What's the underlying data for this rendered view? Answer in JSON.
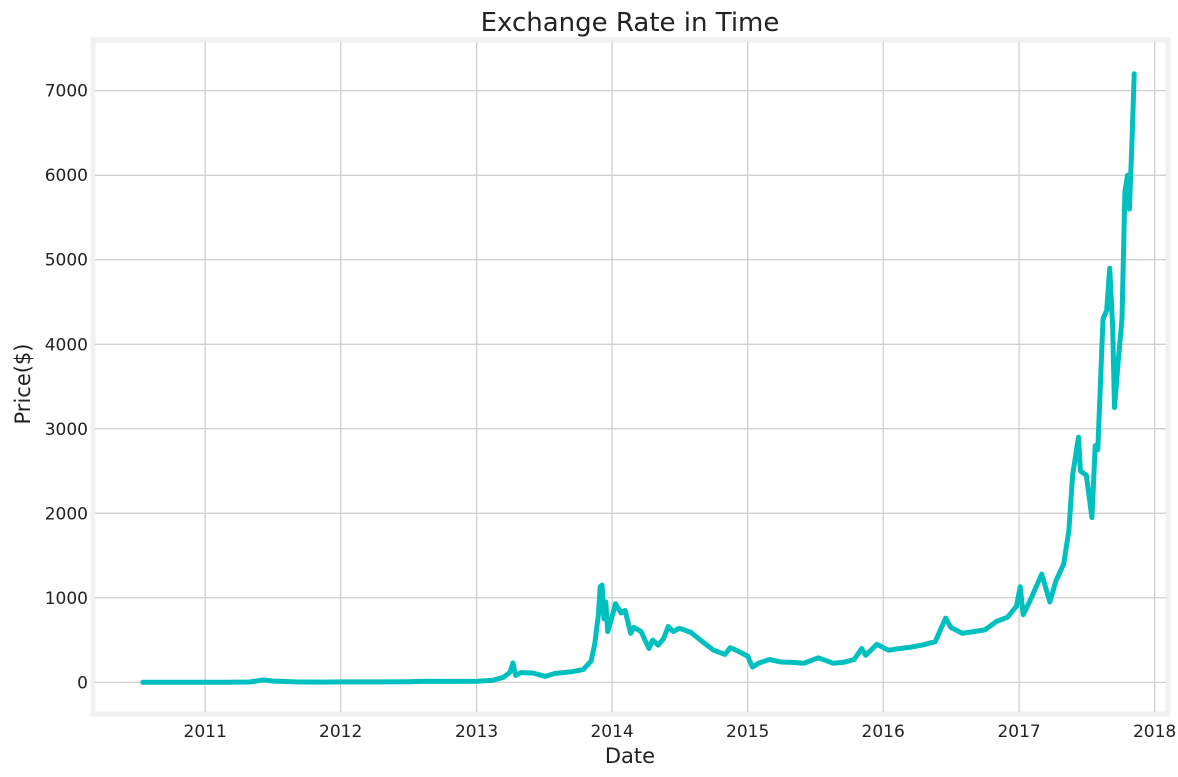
{
  "chart_data": {
    "type": "line",
    "title": "Exchange Rate in Time",
    "xlabel": "Date",
    "ylabel": "Price($)",
    "grid": true,
    "xlim": [
      "2010-03-05",
      "2018-02-06"
    ],
    "ylim": [
      -375,
      7600
    ],
    "x_ticks": [
      "2011",
      "2012",
      "2013",
      "2014",
      "2015",
      "2016",
      "2017",
      "2018"
    ],
    "y_ticks": [
      0,
      1000,
      2000,
      3000,
      4000,
      5000,
      6000,
      7000
    ],
    "series": [
      {
        "color": "#00bfbf",
        "points": [
          [
            "2010-07-17",
            0.05
          ],
          [
            "2010-10-01",
            0.1
          ],
          [
            "2011-01-01",
            0.3
          ],
          [
            "2011-03-01",
            0.9
          ],
          [
            "2011-05-01",
            3.5
          ],
          [
            "2011-06-08",
            29
          ],
          [
            "2011-07-01",
            15
          ],
          [
            "2011-09-01",
            5
          ],
          [
            "2011-11-15",
            2.5
          ],
          [
            "2012-01-01",
            5
          ],
          [
            "2012-04-01",
            5
          ],
          [
            "2012-07-01",
            7
          ],
          [
            "2012-08-15",
            12
          ],
          [
            "2012-10-01",
            11
          ],
          [
            "2013-01-01",
            13
          ],
          [
            "2013-02-15",
            25
          ],
          [
            "2013-03-15",
            60
          ],
          [
            "2013-04-01",
            120
          ],
          [
            "2013-04-09",
            230
          ],
          [
            "2013-04-16",
            80
          ],
          [
            "2013-05-01",
            115
          ],
          [
            "2013-06-01",
            110
          ],
          [
            "2013-07-05",
            70
          ],
          [
            "2013-08-01",
            105
          ],
          [
            "2013-09-15",
            125
          ],
          [
            "2013-10-15",
            150
          ],
          [
            "2013-11-05",
            250
          ],
          [
            "2013-11-15",
            450
          ],
          [
            "2013-11-25",
            800
          ],
          [
            "2013-11-30",
            1130
          ],
          [
            "2013-12-05",
            1150
          ],
          [
            "2013-12-10",
            750
          ],
          [
            "2013-12-15",
            950
          ],
          [
            "2013-12-20",
            600
          ],
          [
            "2013-12-30",
            750
          ],
          [
            "2014-01-10",
            930
          ],
          [
            "2014-01-25",
            820
          ],
          [
            "2014-02-05",
            850
          ],
          [
            "2014-02-20",
            580
          ],
          [
            "2014-03-01",
            650
          ],
          [
            "2014-03-20",
            600
          ],
          [
            "2014-04-10",
            400
          ],
          [
            "2014-04-20",
            500
          ],
          [
            "2014-05-05",
            440
          ],
          [
            "2014-05-20",
            520
          ],
          [
            "2014-06-01",
            660
          ],
          [
            "2014-06-15",
            600
          ],
          [
            "2014-07-01",
            640
          ],
          [
            "2014-08-01",
            590
          ],
          [
            "2014-09-01",
            480
          ],
          [
            "2014-10-01",
            380
          ],
          [
            "2014-11-01",
            330
          ],
          [
            "2014-11-15",
            410
          ],
          [
            "2014-12-01",
            380
          ],
          [
            "2015-01-01",
            310
          ],
          [
            "2015-01-14",
            180
          ],
          [
            "2015-02-01",
            230
          ],
          [
            "2015-03-01",
            270
          ],
          [
            "2015-04-01",
            240
          ],
          [
            "2015-05-01",
            235
          ],
          [
            "2015-06-01",
            225
          ],
          [
            "2015-07-10",
            290
          ],
          [
            "2015-08-20",
            225
          ],
          [
            "2015-09-15",
            235
          ],
          [
            "2015-10-15",
            270
          ],
          [
            "2015-11-04",
            400
          ],
          [
            "2015-11-15",
            320
          ],
          [
            "2015-12-15",
            450
          ],
          [
            "2016-01-15",
            380
          ],
          [
            "2016-02-15",
            400
          ],
          [
            "2016-03-15",
            415
          ],
          [
            "2016-04-15",
            440
          ],
          [
            "2016-05-20",
            480
          ],
          [
            "2016-06-17",
            760
          ],
          [
            "2016-07-01",
            650
          ],
          [
            "2016-08-01",
            580
          ],
          [
            "2016-09-01",
            600
          ],
          [
            "2016-10-01",
            620
          ],
          [
            "2016-11-01",
            720
          ],
          [
            "2016-12-01",
            770
          ],
          [
            "2016-12-25",
            900
          ],
          [
            "2017-01-04",
            1130
          ],
          [
            "2017-01-12",
            800
          ],
          [
            "2017-02-01",
            980
          ],
          [
            "2017-03-03",
            1280
          ],
          [
            "2017-03-25",
            950
          ],
          [
            "2017-04-10",
            1200
          ],
          [
            "2017-05-01",
            1400
          ],
          [
            "2017-05-15",
            1800
          ],
          [
            "2017-05-25",
            2450
          ],
          [
            "2017-06-10",
            2900
          ],
          [
            "2017-06-15",
            2500
          ],
          [
            "2017-07-01",
            2450
          ],
          [
            "2017-07-16",
            1950
          ],
          [
            "2017-07-25",
            2800
          ],
          [
            "2017-08-01",
            2750
          ],
          [
            "2017-08-15",
            4300
          ],
          [
            "2017-08-25",
            4400
          ],
          [
            "2017-09-02",
            4900
          ],
          [
            "2017-09-10",
            4200
          ],
          [
            "2017-09-15",
            3250
          ],
          [
            "2017-09-25",
            3800
          ],
          [
            "2017-10-05",
            4300
          ],
          [
            "2017-10-13",
            5800
          ],
          [
            "2017-10-20",
            6000
          ],
          [
            "2017-10-25",
            5600
          ],
          [
            "2017-11-01",
            6400
          ],
          [
            "2017-11-07",
            7200
          ]
        ]
      }
    ]
  }
}
